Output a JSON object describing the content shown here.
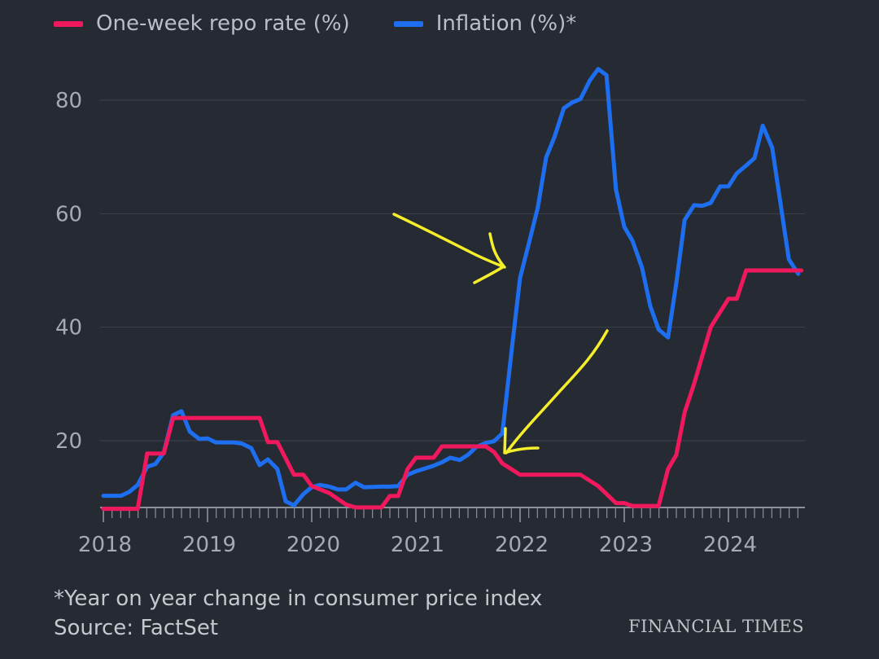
{
  "legend": {
    "repo_label": "One-week repo rate (%)",
    "inflation_label": "Inflation (%)*"
  },
  "colors": {
    "repo": "#f0195d",
    "inflation": "#1e6ff0",
    "annotation": "#f5ee2a",
    "grid": "#3d424c",
    "tick_text": "#a5aab3"
  },
  "footer": {
    "note": "*Year on year change in consumer price index",
    "source": "Source: FactSet"
  },
  "brand": "FINANCIAL TIMES",
  "chart_data": {
    "type": "line",
    "y_ticks": [
      20,
      40,
      60,
      80
    ],
    "x_ticks": [
      "2018",
      "2019",
      "2020",
      "2021",
      "2022",
      "2023",
      "2024"
    ],
    "ylim": [
      8.5,
      88
    ],
    "xlim": [
      2018.0,
      2024.7
    ],
    "grid": true,
    "legend_position": "top-left",
    "series": [
      {
        "name": "One-week repo rate (%)",
        "key": "repo",
        "points": [
          [
            2018.0,
            8.0
          ],
          [
            2018.33,
            8.0
          ],
          [
            2018.42,
            17.75
          ],
          [
            2018.58,
            17.75
          ],
          [
            2018.67,
            24.0
          ],
          [
            2019.5,
            24.0
          ],
          [
            2019.58,
            19.75
          ],
          [
            2019.67,
            19.75
          ],
          [
            2019.83,
            14.0
          ],
          [
            2019.92,
            14.0
          ],
          [
            2020.0,
            12.0
          ],
          [
            2020.17,
            10.75
          ],
          [
            2020.33,
            8.75
          ],
          [
            2020.42,
            8.25
          ],
          [
            2020.67,
            8.25
          ],
          [
            2020.75,
            10.25
          ],
          [
            2020.83,
            10.25
          ],
          [
            2020.92,
            15.0
          ],
          [
            2021.0,
            17.0
          ],
          [
            2021.17,
            17.0
          ],
          [
            2021.25,
            19.0
          ],
          [
            2021.67,
            19.0
          ],
          [
            2021.75,
            18.0
          ],
          [
            2021.83,
            16.0
          ],
          [
            2022.0,
            14.0
          ],
          [
            2022.58,
            14.0
          ],
          [
            2022.75,
            12.0
          ],
          [
            2022.92,
            9.0
          ],
          [
            2023.0,
            9.0
          ],
          [
            2023.08,
            8.5
          ],
          [
            2023.33,
            8.5
          ],
          [
            2023.42,
            15.0
          ],
          [
            2023.5,
            17.5
          ],
          [
            2023.58,
            25.0
          ],
          [
            2023.67,
            30.0
          ],
          [
            2023.83,
            40.0
          ],
          [
            2024.0,
            45.0
          ],
          [
            2024.08,
            45.0
          ],
          [
            2024.17,
            50.0
          ],
          [
            2024.7,
            50.0
          ]
        ]
      },
      {
        "name": "Inflation (%)*",
        "key": "inflation",
        "points": [
          [
            2018.0,
            10.3
          ],
          [
            2018.17,
            10.3
          ],
          [
            2018.25,
            11.0
          ],
          [
            2018.33,
            12.2
          ],
          [
            2018.42,
            15.4
          ],
          [
            2018.5,
            15.9
          ],
          [
            2018.58,
            17.9
          ],
          [
            2018.67,
            24.5
          ],
          [
            2018.75,
            25.2
          ],
          [
            2018.83,
            21.6
          ],
          [
            2018.92,
            20.3
          ],
          [
            2019.0,
            20.4
          ],
          [
            2019.08,
            19.7
          ],
          [
            2019.25,
            19.7
          ],
          [
            2019.33,
            19.5
          ],
          [
            2019.42,
            18.7
          ],
          [
            2019.5,
            15.7
          ],
          [
            2019.58,
            16.7
          ],
          [
            2019.67,
            15.0
          ],
          [
            2019.75,
            9.3
          ],
          [
            2019.83,
            8.6
          ],
          [
            2019.92,
            10.6
          ],
          [
            2020.0,
            11.8
          ],
          [
            2020.08,
            12.2
          ],
          [
            2020.17,
            11.9
          ],
          [
            2020.25,
            11.4
          ],
          [
            2020.33,
            11.4
          ],
          [
            2020.42,
            12.6
          ],
          [
            2020.5,
            11.8
          ],
          [
            2020.67,
            11.9
          ],
          [
            2020.75,
            11.9
          ],
          [
            2020.83,
            12.0
          ],
          [
            2020.92,
            14.0
          ],
          [
            2021.0,
            14.6
          ],
          [
            2021.17,
            15.6
          ],
          [
            2021.25,
            16.2
          ],
          [
            2021.33,
            17.0
          ],
          [
            2021.42,
            16.6
          ],
          [
            2021.5,
            17.5
          ],
          [
            2021.58,
            18.9
          ],
          [
            2021.67,
            19.6
          ],
          [
            2021.75,
            19.9
          ],
          [
            2021.83,
            21.3
          ],
          [
            2021.92,
            36.1
          ],
          [
            2022.0,
            48.7
          ],
          [
            2022.08,
            54.4
          ],
          [
            2022.17,
            61.1
          ],
          [
            2022.25,
            69.9
          ],
          [
            2022.33,
            73.5
          ],
          [
            2022.42,
            78.6
          ],
          [
            2022.5,
            79.6
          ],
          [
            2022.58,
            80.2
          ],
          [
            2022.67,
            83.5
          ],
          [
            2022.75,
            85.5
          ],
          [
            2022.83,
            84.4
          ],
          [
            2022.92,
            64.3
          ],
          [
            2023.0,
            57.7
          ],
          [
            2023.08,
            55.2
          ],
          [
            2023.17,
            50.5
          ],
          [
            2023.25,
            43.7
          ],
          [
            2023.33,
            39.6
          ],
          [
            2023.42,
            38.2
          ],
          [
            2023.5,
            47.8
          ],
          [
            2023.58,
            58.9
          ],
          [
            2023.67,
            61.5
          ],
          [
            2023.75,
            61.4
          ],
          [
            2023.83,
            61.9
          ],
          [
            2023.92,
            64.8
          ],
          [
            2024.0,
            64.8
          ],
          [
            2024.08,
            67.1
          ],
          [
            2024.17,
            68.5
          ],
          [
            2024.25,
            69.8
          ],
          [
            2024.33,
            75.5
          ],
          [
            2024.42,
            71.6
          ],
          [
            2024.5,
            61.8
          ],
          [
            2024.58,
            51.97
          ],
          [
            2024.67,
            49.4
          ]
        ]
      }
    ]
  }
}
